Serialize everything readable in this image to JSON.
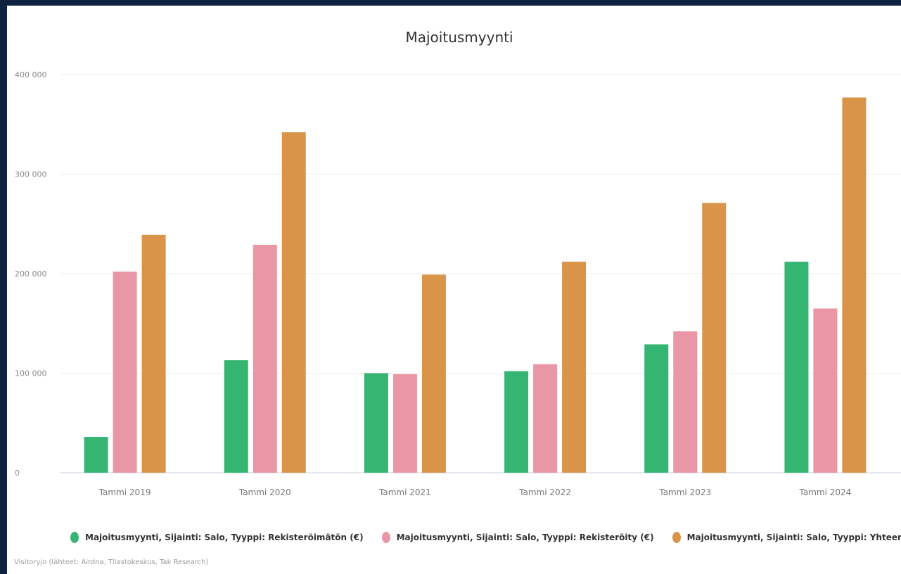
{
  "chart_data": {
    "type": "bar",
    "title": "Majoitusmyynti",
    "categories": [
      "Tammi 2019",
      "Tammi 2020",
      "Tammi 2021",
      "Tammi 2022",
      "Tammi 2023",
      "Tammi 2024"
    ],
    "series": [
      {
        "name": "Majoitusmyynti, Sijainti: Salo, Tyyppi: Rekisteröimätön (€)",
        "color": "#35b572",
        "values": [
          36000,
          113000,
          100000,
          102000,
          129000,
          212000
        ]
      },
      {
        "name": "Majoitusmyynti, Sijainti: Salo, Tyyppi: Rekisteröity (€)",
        "color": "#e996a6",
        "values": [
          202000,
          229000,
          99000,
          109000,
          142000,
          165000
        ]
      },
      {
        "name": "Majoitusmyynti, Sijainti: Salo, Tyyppi: Yhteensä (€)",
        "color": "#d9944a",
        "values": [
          239000,
          342000,
          199000,
          212000,
          271000,
          377000
        ]
      }
    ],
    "y_ticks": [
      0,
      100000,
      200000,
      300000,
      400000
    ],
    "y_tick_labels": [
      "0",
      "100 000",
      "200 000",
      "300 000",
      "400 000"
    ],
    "ylim": [
      0,
      400000
    ],
    "grid": true,
    "legend_position": "bottom",
    "source": "Visitoryjo (lähteet: Airdna, Tilastokeskus, Tak Research)"
  }
}
